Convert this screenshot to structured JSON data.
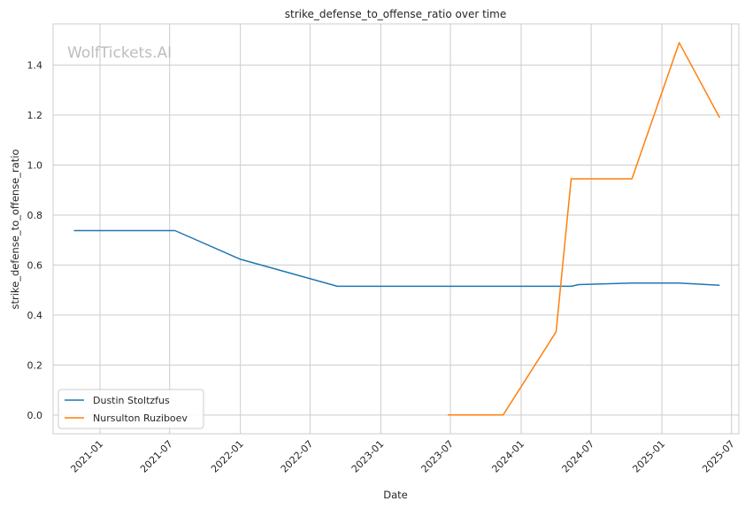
{
  "chart_data": {
    "type": "line",
    "title": "strike_defense_to_offense_ratio over time",
    "xlabel": "Date",
    "ylabel": "strike_defense_to_offense_ratio",
    "watermark": "WolfTickets.AI",
    "xlim": [
      "2020-09-01",
      "2025-07-20"
    ],
    "ylim": [
      -0.075,
      1.565
    ],
    "x_ticks": [
      "2021-01",
      "2021-07",
      "2022-01",
      "2022-07",
      "2023-01",
      "2023-07",
      "2024-01",
      "2024-07",
      "2025-01",
      "2025-07"
    ],
    "y_ticks": [
      "0.0",
      "0.2",
      "0.4",
      "0.6",
      "0.8",
      "1.0",
      "1.2",
      "1.4"
    ],
    "grid": true,
    "legend_position": "lower-left",
    "series": [
      {
        "name": "Dustin Stoltzfus",
        "color": "#1f77b4",
        "points": [
          {
            "x": "2020-10-25",
            "y": 0.738
          },
          {
            "x": "2021-07-15",
            "y": 0.738
          },
          {
            "x": "2022-01-01",
            "y": 0.623
          },
          {
            "x": "2022-09-10",
            "y": 0.515
          },
          {
            "x": "2024-05-10",
            "y": 0.515
          },
          {
            "x": "2024-05-30",
            "y": 0.522
          },
          {
            "x": "2024-10-15",
            "y": 0.528
          },
          {
            "x": "2025-02-15",
            "y": 0.528
          },
          {
            "x": "2025-05-31",
            "y": 0.519
          }
        ]
      },
      {
        "name": "Nursulton Ruziboev",
        "color": "#ff7f0e",
        "points": [
          {
            "x": "2023-06-24",
            "y": 0.0
          },
          {
            "x": "2023-11-15",
            "y": 0.0
          },
          {
            "x": "2024-04-01",
            "y": 0.333
          },
          {
            "x": "2024-05-10",
            "y": 0.945
          },
          {
            "x": "2024-10-15",
            "y": 0.945
          },
          {
            "x": "2025-02-15",
            "y": 1.49
          },
          {
            "x": "2025-05-31",
            "y": 1.19
          }
        ]
      }
    ]
  }
}
